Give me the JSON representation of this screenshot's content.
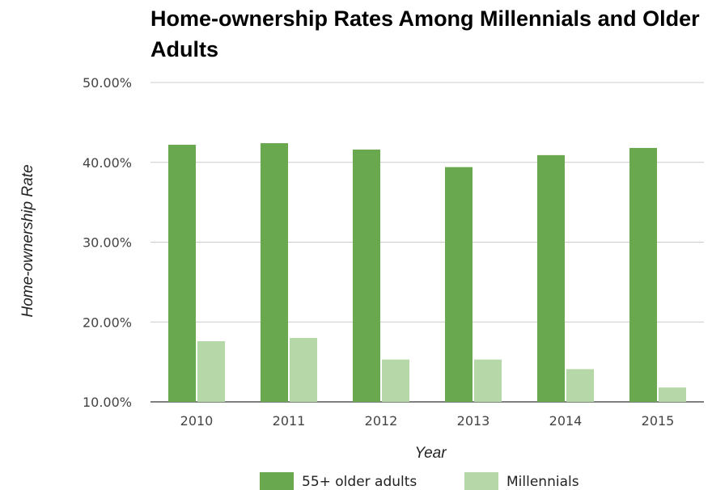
{
  "chart_data": {
    "type": "bar",
    "title": "Home-ownership Rates Among Millennials and Older Adults",
    "xlabel": "Year",
    "ylabel": "Home-ownership Rate",
    "categories": [
      "2010",
      "2011",
      "2012",
      "2013",
      "2014",
      "2015"
    ],
    "series": [
      {
        "name": "55+ older adults",
        "color": "#6aa84f",
        "values": [
          42.2,
          42.4,
          41.6,
          39.4,
          40.9,
          41.8
        ]
      },
      {
        "name": "Millennials",
        "color": "#b6d7a8",
        "values": [
          17.6,
          18.0,
          15.3,
          15.3,
          14.1,
          11.8
        ]
      }
    ],
    "ylim": [
      10,
      50
    ],
    "yticks": [
      "10.00%",
      "20.00%",
      "30.00%",
      "40.00%",
      "50.00%"
    ],
    "grid": true,
    "legend_position": "bottom"
  }
}
